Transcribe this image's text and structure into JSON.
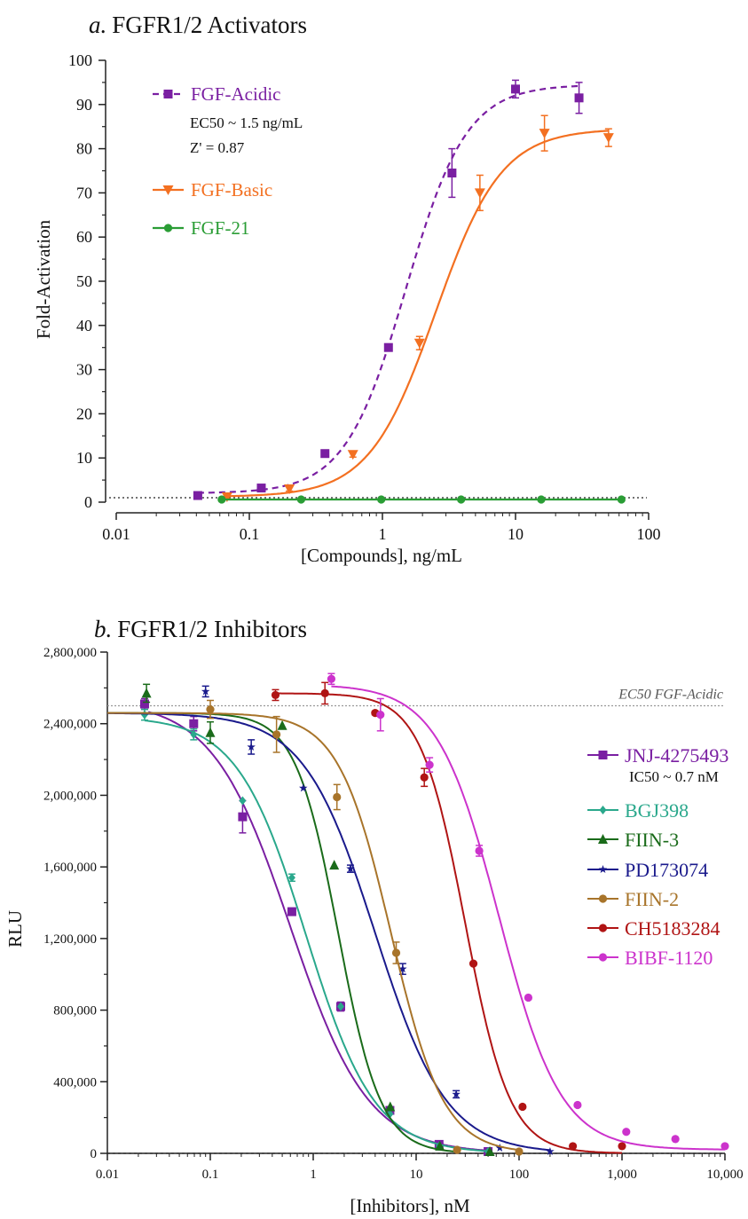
{
  "colors": {
    "purple": "#7a1fa2",
    "orange": "#f37021",
    "green": "#2a9d35",
    "teal": "#2aa88c",
    "dkgreen": "#1a6b1a",
    "navy": "#1a1a8c",
    "brown": "#a8742a",
    "darkred": "#b01414",
    "magenta": "#cc33cc"
  },
  "chart_data": [
    {
      "type": "line",
      "panel_letter": "a.",
      "title": "FGFR1/2 Activators",
      "xlabel": "[Compounds], ng/mL",
      "ylabel": "Fold-Activation",
      "x_scale": "log",
      "xlim": [
        0.01,
        100
      ],
      "ylim": [
        0,
        100
      ],
      "x_ticks": [
        "0.01",
        "0.1",
        "1",
        "10",
        "100"
      ],
      "y_ticks": [
        "0",
        "10",
        "20",
        "30",
        "40",
        "50",
        "60",
        "70",
        "80",
        "90",
        "100"
      ],
      "baseline": 1,
      "series": [
        {
          "name": "FGF-Acidic",
          "marker": "square",
          "line": "dashed",
          "color": "#7a1fa2",
          "annotations": [
            "EC50 ~ 1.5 ng/mL",
            "Z' = 0.87"
          ],
          "x": [
            0.041,
            0.123,
            0.37,
            1.11,
            3.33,
            10,
            30
          ],
          "y": [
            1.5,
            3.2,
            11,
            35,
            74.5,
            93.5,
            91.5
          ],
          "err": [
            0.5,
            0.5,
            0.5,
            0.8,
            5.5,
            2,
            3.5
          ],
          "fit": {
            "bottom": 2,
            "top": 94.5,
            "ec50": 1.5,
            "hill": 1.9
          }
        },
        {
          "name": "FGF-Basic",
          "marker": "triangle-down",
          "line": "solid",
          "color": "#f37021",
          "x": [
            0.068,
            0.2,
            0.6,
            1.9,
            5.4,
            16.5,
            50
          ],
          "y": [
            1.2,
            3,
            10.8,
            36,
            70,
            83.5,
            82.5
          ],
          "err": [
            0.4,
            0.5,
            0.6,
            1.5,
            4,
            4,
            2
          ],
          "fit": {
            "bottom": 1.2,
            "top": 84.5,
            "ec50": 2.5,
            "hill": 1.75
          }
        },
        {
          "name": "FGF-21",
          "marker": "circle",
          "line": "solid",
          "color": "#2a9d35",
          "x": [
            0.062,
            0.245,
            0.98,
            3.9,
            15.6,
            62.5
          ],
          "y": [
            0.6,
            0.6,
            0.6,
            0.6,
            0.6,
            0.6
          ],
          "err": [
            0,
            0,
            0,
            0,
            0,
            0
          ],
          "fit": {
            "bottom": 0.6,
            "top": 0.6,
            "ec50": 1,
            "hill": 1
          }
        }
      ]
    },
    {
      "type": "line",
      "panel_letter": "b.",
      "title": "FGFR1/2 Inhibitors",
      "xlabel": "[Inhibitors], nM",
      "ylabel": "RLU",
      "x_scale": "log",
      "xlim": [
        0.01,
        10000
      ],
      "ylim": [
        0,
        2800000
      ],
      "x_ticks": [
        "0.01",
        "0.1",
        "1",
        "10",
        "100",
        "1,000",
        "10,000"
      ],
      "y_ticks": [
        "0",
        "400,000",
        "800,000",
        "1,200,000",
        "1,600,000",
        "2,000,000",
        "2,400,000",
        "2,800,000"
      ],
      "reference_line": {
        "y": 2500000,
        "label": "EC50 FGF-Acidic"
      },
      "series": [
        {
          "name": "JNJ-4275493",
          "marker": "square",
          "color": "#7a1fa2",
          "annotation": "IC50 ~ 0.7 nM",
          "x": [
            0.023,
            0.069,
            0.206,
            0.62,
            1.85,
            5.56,
            16.7,
            50
          ],
          "y": [
            2510000,
            2400000,
            1880000,
            1350000,
            820000,
            240000,
            50000,
            10000
          ],
          "err": [
            30000,
            40000,
            90000,
            20000,
            25000,
            15000,
            10000,
            5000
          ],
          "fit": {
            "bottom": 0,
            "top": 2530000,
            "ic50": 0.6,
            "hill": 1.15,
            "xmin": 0.025,
            "xmax": 50
          }
        },
        {
          "name": "BGJ398",
          "marker": "diamond",
          "color": "#2aa88c",
          "x": [
            0.023,
            0.069,
            0.206,
            0.62,
            1.85,
            5.56,
            16.7,
            50
          ],
          "y": [
            2450000,
            2340000,
            1970000,
            1540000,
            820000,
            220000,
            40000,
            10000
          ],
          "err": [
            30000,
            30000,
            0,
            20000,
            0,
            0,
            0,
            0
          ],
          "fit": {
            "bottom": 0,
            "top": 2440000,
            "ic50": 0.85,
            "hill": 1.3,
            "xmin": 0.023,
            "xmax": 50
          }
        },
        {
          "name": "FIIN-3",
          "marker": "triangle",
          "color": "#1a6b1a",
          "x": [
            0.024,
            0.1,
            0.5,
            1.6,
            5.6,
            17,
            52
          ],
          "y": [
            2570000,
            2350000,
            2390000,
            1610000,
            260000,
            40000,
            10000
          ],
          "err": [
            50000,
            60000,
            0,
            0,
            0,
            0,
            0
          ],
          "fit": {
            "bottom": 0,
            "top": 2460000,
            "ic50": 1.75,
            "hill": 2.1,
            "xmin": 0.01,
            "xmax": 25
          }
        },
        {
          "name": "PD173074",
          "marker": "star",
          "color": "#1a1a8c",
          "x": [
            0.09,
            0.25,
            0.8,
            2.3,
            7.4,
            24.5,
            65,
            200
          ],
          "y": [
            2580000,
            2270000,
            2040000,
            1590000,
            1030000,
            330000,
            30000,
            10000
          ],
          "err": [
            30000,
            40000,
            0,
            20000,
            30000,
            20000,
            0,
            0
          ],
          "fit": {
            "bottom": 0,
            "top": 2460000,
            "ic50": 4,
            "hill": 1.25,
            "xmin": 0.01,
            "xmax": 200
          }
        },
        {
          "name": "FIIN-2",
          "marker": "circle",
          "color": "#a8742a",
          "x": [
            0.1,
            0.44,
            1.7,
            6.4,
            25,
            100
          ],
          "y": [
            2480000,
            2340000,
            1990000,
            1120000,
            20000,
            10000
          ],
          "err": [
            50000,
            100000,
            70000,
            60000,
            0,
            0
          ],
          "fit": {
            "bottom": 0,
            "top": 2460000,
            "ic50": 5.7,
            "hill": 1.7,
            "xmin": 0.01,
            "xmax": 100
          }
        },
        {
          "name": "CH5183284",
          "marker": "circle",
          "color": "#b01414",
          "x": [
            0.43,
            1.3,
            4,
            12,
            36,
            108,
            333,
            1000
          ],
          "y": [
            2560000,
            2570000,
            2460000,
            2100000,
            1060000,
            260000,
            40000,
            40000
          ],
          "err": [
            30000,
            60000,
            10000,
            50000,
            0,
            0,
            0,
            0
          ],
          "fit": {
            "bottom": 0,
            "top": 2570000,
            "ic50": 30,
            "hill": 2.0,
            "xmin": 0.43,
            "xmax": 1000
          }
        },
        {
          "name": "BIBF-1120",
          "marker": "circle",
          "color": "#cc33cc",
          "x": [
            1.5,
            4.5,
            13.5,
            41,
            123,
            370,
            1100,
            3300,
            10000
          ],
          "y": [
            2650000,
            2450000,
            2170000,
            1690000,
            870000,
            270000,
            120000,
            80000,
            40000
          ],
          "err": [
            30000,
            90000,
            40000,
            30000,
            0,
            0,
            0,
            0,
            0
          ],
          "fit": {
            "bottom": 20000,
            "top": 2620000,
            "ic50": 64,
            "hill": 1.45,
            "xmin": 1.5,
            "xmax": 10000
          }
        }
      ]
    }
  ]
}
